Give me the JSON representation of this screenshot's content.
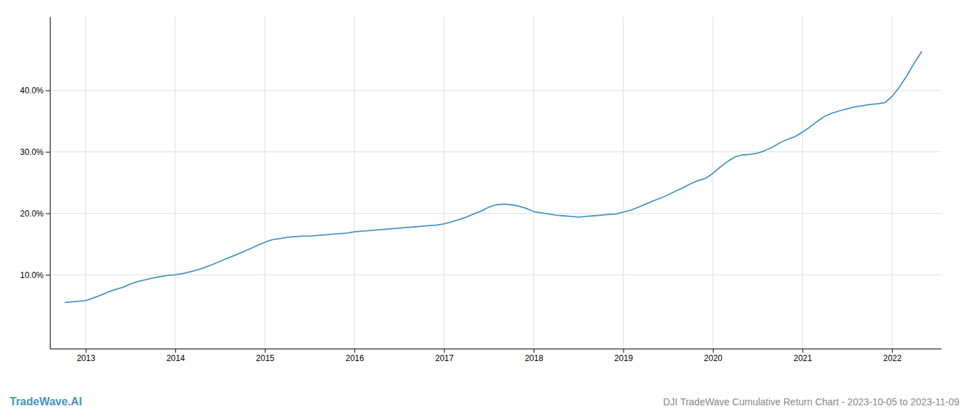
{
  "chart_data": {
    "type": "line",
    "title": "DJI TradeWave Cumulative Return Chart - 2023-10-05 to 2023-11-09",
    "annotations": [
      "TradeWave.AI"
    ],
    "color": "#4393c3",
    "grid": true,
    "x": [
      2012.77,
      2013.0,
      2013.08,
      2013.17,
      2013.25,
      2013.33,
      2013.42,
      2013.5,
      2013.58,
      2013.67,
      2013.75,
      2013.83,
      2013.92,
      2014.0,
      2014.08,
      2014.17,
      2014.25,
      2014.33,
      2014.42,
      2014.5,
      2014.58,
      2014.67,
      2014.75,
      2014.83,
      2014.92,
      2015.0,
      2015.08,
      2015.17,
      2015.25,
      2015.33,
      2015.42,
      2015.5,
      2015.58,
      2015.67,
      2015.75,
      2015.83,
      2015.92,
      2016.0,
      2016.08,
      2016.17,
      2016.25,
      2016.33,
      2016.42,
      2016.5,
      2016.58,
      2016.67,
      2016.75,
      2016.83,
      2016.92,
      2017.0,
      2017.08,
      2017.17,
      2017.25,
      2017.33,
      2017.42,
      2017.5,
      2017.58,
      2017.67,
      2017.75,
      2017.83,
      2017.92,
      2018.0,
      2018.08,
      2018.17,
      2018.25,
      2018.33,
      2018.42,
      2018.5,
      2018.58,
      2018.67,
      2018.75,
      2018.83,
      2018.92,
      2019.0,
      2019.08,
      2019.17,
      2019.25,
      2019.33,
      2019.42,
      2019.5,
      2019.58,
      2019.67,
      2019.75,
      2019.83,
      2019.92,
      2020.0,
      2020.08,
      2020.17,
      2020.25,
      2020.33,
      2020.42,
      2020.5,
      2020.58,
      2020.67,
      2020.75,
      2020.83,
      2020.92,
      2021.0,
      2021.08,
      2021.17,
      2021.25,
      2021.33,
      2021.42,
      2021.5,
      2021.58,
      2021.67,
      2021.75,
      2021.83,
      2021.92,
      2022.0,
      2022.08,
      2022.17,
      2022.25,
      2022.33
    ],
    "values": [
      5.5,
      5.8,
      6.2,
      6.7,
      7.2,
      7.6,
      8.0,
      8.5,
      8.9,
      9.2,
      9.5,
      9.7,
      9.9,
      10.0,
      10.2,
      10.5,
      10.8,
      11.2,
      11.7,
      12.2,
      12.7,
      13.2,
      13.7,
      14.2,
      14.8,
      15.3,
      15.7,
      15.9,
      16.1,
      16.2,
      16.3,
      16.3,
      16.4,
      16.5,
      16.6,
      16.7,
      16.8,
      17.0,
      17.1,
      17.2,
      17.3,
      17.4,
      17.5,
      17.6,
      17.7,
      17.8,
      17.9,
      18.0,
      18.1,
      18.3,
      18.6,
      19.0,
      19.4,
      19.9,
      20.4,
      21.0,
      21.4,
      21.5,
      21.4,
      21.2,
      20.8,
      20.3,
      20.1,
      19.9,
      19.7,
      19.6,
      19.5,
      19.4,
      19.5,
      19.6,
      19.7,
      19.8,
      19.9,
      20.2,
      20.5,
      21.0,
      21.5,
      22.0,
      22.5,
      23.0,
      23.6,
      24.2,
      24.8,
      25.3,
      25.7,
      26.5,
      27.5,
      28.5,
      29.2,
      29.5,
      29.6,
      29.8,
      30.2,
      30.8,
      31.5,
      32.0,
      32.5,
      33.2,
      34.0,
      35.0,
      35.8,
      36.3,
      36.7,
      37.0,
      37.3,
      37.5,
      37.7,
      37.8,
      38.0,
      39.0,
      40.5,
      42.5,
      44.5,
      46.3
    ],
    "xlim": [
      2012.6,
      2022.55
    ],
    "xticks": [
      2013,
      2014,
      2015,
      2016,
      2017,
      2018,
      2019,
      2020,
      2021,
      2022
    ],
    "ylim": [
      -2,
      52
    ],
    "yticks": [
      {
        "value": 10.0,
        "label": "10.0%"
      },
      {
        "value": 20.0,
        "label": "20.0%"
      },
      {
        "value": 30.0,
        "label": "30.0%"
      },
      {
        "value": 40.0,
        "label": "40.0%"
      }
    ]
  }
}
